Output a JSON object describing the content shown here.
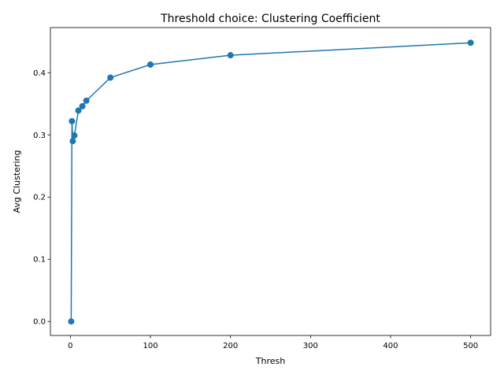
{
  "chart_data": {
    "type": "line",
    "title": "Threshold choice: Clustering Coefficient",
    "xlabel": "Thresh",
    "ylabel": "Avg Clustering",
    "xlim": [
      -24.95,
      524.95
    ],
    "ylim": [
      -0.0225,
      0.4725
    ],
    "xticks": [
      0,
      100,
      200,
      300,
      400,
      500
    ],
    "yticks": [
      0.0,
      0.1,
      0.2,
      0.3,
      0.4
    ],
    "xtick_labels": [
      "0",
      "100",
      "200",
      "300",
      "400",
      "500"
    ],
    "ytick_labels": [
      "0.0",
      "0.1",
      "0.2",
      "0.3",
      "0.4"
    ],
    "grid": false,
    "series": [
      {
        "color": "#1f77b4",
        "marker": "circle",
        "x": [
          1,
          2,
          3,
          5,
          10,
          15,
          20,
          50,
          100,
          200,
          500
        ],
        "y": [
          0.0,
          0.322,
          0.29,
          0.299,
          0.339,
          0.346,
          0.355,
          0.392,
          0.413,
          0.428,
          0.448
        ]
      }
    ]
  }
}
